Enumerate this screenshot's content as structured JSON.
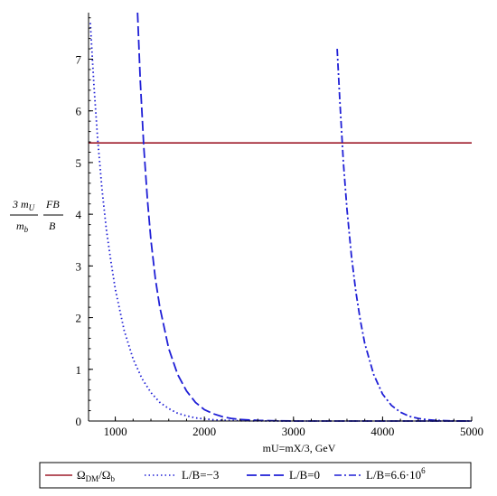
{
  "chart_data": {
    "type": "line",
    "xlabel": "mU=mX/3, GeV",
    "ylabel": {
      "numerator": "3 m",
      "numerator_sub": "U",
      "denominator": "m",
      "denominator_sub": "b",
      "fraction2_numerator": "FB",
      "fraction2_denominator": "B"
    },
    "xlim": [
      700,
      5000
    ],
    "ylim": [
      0,
      7.9
    ],
    "xticks": [
      1000,
      2000,
      3000,
      4000,
      5000
    ],
    "xtick_labels": [
      "1000",
      "2000",
      "3000",
      "4000",
      "5000"
    ],
    "yticks": [
      0,
      1,
      2,
      3,
      4,
      5,
      6,
      7
    ],
    "ytick_labels": [
      "0",
      "1",
      "2",
      "3",
      "4",
      "5",
      "6",
      "7"
    ],
    "grid": false,
    "legend_position": "bottom",
    "series": [
      {
        "name": "ΩDM/Ωb",
        "legend_main": "Ω",
        "legend_sub1": "DM",
        "legend_mid": "/Ω",
        "legend_sub2": "b",
        "color": "#9e1b2a",
        "style": "solid",
        "x": [
          700,
          5000
        ],
        "y": [
          5.38,
          5.38
        ]
      },
      {
        "name": "L/B=−3",
        "color": "#1f1fd6",
        "style": "dotted",
        "x": [
          720,
          760,
          800,
          850,
          900,
          950,
          1000,
          1100,
          1200,
          1300,
          1400,
          1500,
          1600,
          1700,
          1800,
          1900,
          2000,
          2100,
          2200,
          2400,
          2600,
          3000,
          5000
        ],
        "y": [
          7.7,
          6.5,
          5.5,
          4.5,
          3.7,
          3.1,
          2.55,
          1.75,
          1.2,
          0.82,
          0.55,
          0.36,
          0.24,
          0.15,
          0.1,
          0.06,
          0.04,
          0.025,
          0.015,
          0.006,
          0.002,
          0.0,
          0.0
        ]
      },
      {
        "name": "L/B=0",
        "color": "#1f1fd6",
        "style": "dashed",
        "x": [
          1250,
          1280,
          1320,
          1360,
          1400,
          1450,
          1500,
          1600,
          1700,
          1800,
          1900,
          2000,
          2100,
          2200,
          2300,
          2400,
          2600,
          2800,
          3000,
          5000
        ],
        "y": [
          7.9,
          6.6,
          5.3,
          4.3,
          3.5,
          2.75,
          2.2,
          1.4,
          0.9,
          0.58,
          0.36,
          0.22,
          0.14,
          0.085,
          0.05,
          0.03,
          0.012,
          0.004,
          0.0,
          0.0
        ]
      },
      {
        "name": "L/B=6.6·10⁶",
        "legend_main": "L/B=6.6·10",
        "legend_sup": "6",
        "color": "#1f1fd6",
        "style": "dashdot",
        "x": [
          3490,
          3520,
          3560,
          3600,
          3650,
          3700,
          3750,
          3800,
          3900,
          4000,
          4100,
          4200,
          4300,
          4400,
          4500,
          4600,
          4800,
          5000
        ],
        "y": [
          7.2,
          6.2,
          5.0,
          4.1,
          3.2,
          2.5,
          1.95,
          1.5,
          0.9,
          0.52,
          0.3,
          0.17,
          0.09,
          0.05,
          0.025,
          0.012,
          0.003,
          0.0
        ]
      }
    ]
  }
}
